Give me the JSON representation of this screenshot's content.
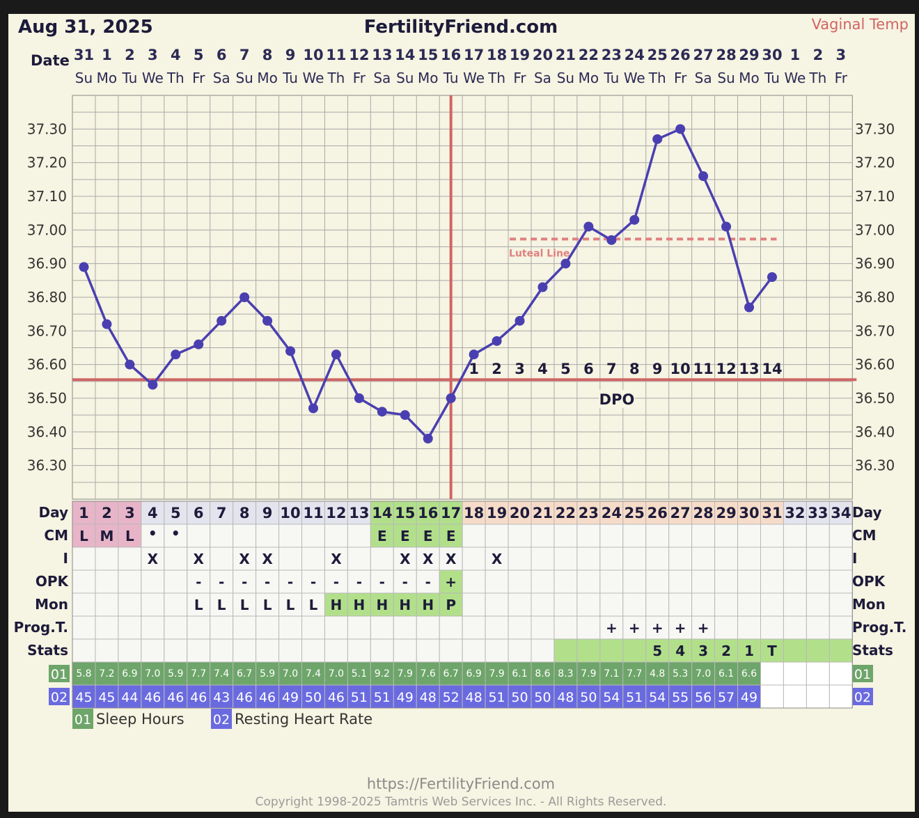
{
  "header": {
    "date": "Aug 31, 2025",
    "site": "FertilityFriend.com",
    "temp_type": "Vaginal Temp",
    "date_label": "Date"
  },
  "colors": {
    "background": "#f6f4e2",
    "temp_line": "#4a3fb0",
    "coverline": "#d06464",
    "luteal": "#e08080",
    "menses": "#e8b4c8",
    "fertile": "#b2e08a",
    "luteal_phase": "#f6dcc8",
    "sleep_bg": "#6ea56a",
    "hr_bg": "#6a6ae0"
  },
  "chart_data": {
    "type": "line",
    "dates": [
      "31",
      "1",
      "2",
      "3",
      "4",
      "5",
      "6",
      "7",
      "8",
      "9",
      "10",
      "11",
      "12",
      "13",
      "14",
      "15",
      "16",
      "17",
      "18",
      "19",
      "20",
      "21",
      "22",
      "23",
      "24",
      "25",
      "26",
      "27",
      "28",
      "29",
      "30",
      "1",
      "2",
      "3"
    ],
    "weekdays": [
      "Su",
      "Mo",
      "Tu",
      "We",
      "Th",
      "Fr",
      "Sa",
      "Su",
      "Mo",
      "Tu",
      "We",
      "Th",
      "Fr",
      "Sa",
      "Su",
      "Mo",
      "Tu",
      "We",
      "Th",
      "Fr",
      "Sa",
      "Su",
      "Mo",
      "Tu",
      "We",
      "Th",
      "Fr",
      "Sa",
      "Su",
      "Mo",
      "Tu",
      "We",
      "Th",
      "Fr"
    ],
    "cycle_days": [
      "1",
      "2",
      "3",
      "4",
      "5",
      "6",
      "7",
      "8",
      "9",
      "10",
      "11",
      "12",
      "13",
      "14",
      "15",
      "16",
      "17",
      "18",
      "19",
      "20",
      "21",
      "22",
      "23",
      "24",
      "25",
      "26",
      "27",
      "28",
      "29",
      "30",
      "31",
      "32",
      "33",
      "34"
    ],
    "temps": [
      36.89,
      36.72,
      36.6,
      36.54,
      36.63,
      36.66,
      36.73,
      36.8,
      36.73,
      36.64,
      36.47,
      36.63,
      36.5,
      36.46,
      36.45,
      36.38,
      36.5,
      36.63,
      36.67,
      36.73,
      36.83,
      36.9,
      37.01,
      36.97,
      37.03,
      37.27,
      37.3,
      37.16,
      37.01,
      36.77,
      36.86
    ],
    "y_ticks": [
      "37.30",
      "37.20",
      "37.10",
      "37.00",
      "36.90",
      "36.80",
      "36.70",
      "36.60",
      "36.50",
      "36.40",
      "36.30"
    ],
    "ylim": [
      36.2,
      37.4
    ],
    "coverline": 36.555,
    "ovulation_day": 17,
    "luteal_line": {
      "value": 36.973,
      "start_day": 20,
      "end_day": 31,
      "label": "Luteal Line"
    },
    "dpo": [
      "1",
      "2",
      "3",
      "4",
      "5",
      "6",
      "7",
      "8",
      "9",
      "10",
      "11",
      "12",
      "13",
      "14"
    ],
    "dpo_start_day": 18,
    "dpo_label": "DPO"
  },
  "rows": {
    "day_label": "Day",
    "cm_label": "CM",
    "i_label": "I",
    "opk_label": "OPK",
    "mon_label": "Mon",
    "prog_label": "Prog.T.",
    "stats_label": "Stats",
    "cm": [
      "L",
      "M",
      "L",
      "•",
      "•",
      "",
      "",
      "",
      "",
      "",
      "",
      "",
      "",
      "E",
      "E",
      "E",
      "E",
      "",
      "",
      "",
      "",
      "",
      "",
      "",
      "",
      "",
      "",
      "",
      "",
      "",
      "",
      "",
      "",
      ""
    ],
    "intercourse": [
      "",
      "",
      "",
      "X",
      "",
      "X",
      "",
      "X",
      "X",
      "",
      "",
      "X",
      "",
      "",
      "X",
      "X",
      "X",
      "",
      "X",
      "",
      "",
      "",
      "",
      "",
      "",
      "",
      "",
      "",
      "",
      "",
      "",
      "",
      "",
      ""
    ],
    "opk": [
      "",
      "",
      "",
      "",
      "",
      "-",
      "-",
      "-",
      "-",
      "-",
      "-",
      "-",
      "-",
      "-",
      "-",
      "-",
      "+",
      "",
      "",
      "",
      "",
      "",
      "",
      "",
      "",
      "",
      "",
      "",
      "",
      "",
      "",
      "",
      "",
      ""
    ],
    "mon": [
      "",
      "",
      "",
      "",
      "",
      "L",
      "L",
      "L",
      "L",
      "L",
      "L",
      "H",
      "H",
      "H",
      "H",
      "H",
      "P",
      "",
      "",
      "",
      "",
      "",
      "",
      "",
      "",
      "",
      "",
      "",
      "",
      "",
      "",
      "",
      "",
      ""
    ],
    "prog": [
      "",
      "",
      "",
      "",
      "",
      "",
      "",
      "",
      "",
      "",
      "",
      "",
      "",
      "",
      "",
      "",
      "",
      "",
      "",
      "",
      "",
      "",
      "",
      "+",
      "+",
      "+",
      "+",
      "+",
      "",
      "",
      "",
      "",
      "",
      ""
    ],
    "stats": [
      "",
      "",
      "",
      "",
      "",
      "",
      "",
      "",
      "",
      "",
      "",
      "",
      "",
      "",
      "",
      "",
      "",
      "",
      "",
      "",
      "",
      "",
      "",
      "",
      "",
      "5",
      "4",
      "3",
      "2",
      "1",
      "T",
      "",
      "",
      ""
    ],
    "sleep": [
      "5.8",
      "7.2",
      "6.9",
      "7.0",
      "5.9",
      "7.7",
      "7.4",
      "6.7",
      "5.9",
      "7.0",
      "7.4",
      "7.0",
      "5.1",
      "9.2",
      "7.9",
      "7.6",
      "6.7",
      "6.9",
      "7.9",
      "6.1",
      "8.6",
      "8.3",
      "7.9",
      "7.1",
      "7.7",
      "4.8",
      "5.3",
      "7.0",
      "6.1",
      "6.6",
      "",
      "",
      "",
      ""
    ],
    "heart_rate": [
      "45",
      "45",
      "44",
      "46",
      "46",
      "46",
      "43",
      "46",
      "46",
      "49",
      "50",
      "46",
      "51",
      "51",
      "49",
      "48",
      "52",
      "48",
      "51",
      "50",
      "50",
      "48",
      "50",
      "54",
      "51",
      "54",
      "55",
      "56",
      "57",
      "49",
      "",
      "",
      "",
      ""
    ],
    "sleep_tag": "01",
    "hr_tag": "02"
  },
  "legend": {
    "sleep_tag": "01",
    "sleep_label": "Sleep Hours",
    "hr_tag": "02",
    "hr_label": "Resting Heart Rate"
  },
  "footer": {
    "url": "https://FertilityFriend.com",
    "copyright": "Copyright 1998-2025 Tamtris Web Services Inc. - All Rights Reserved."
  }
}
